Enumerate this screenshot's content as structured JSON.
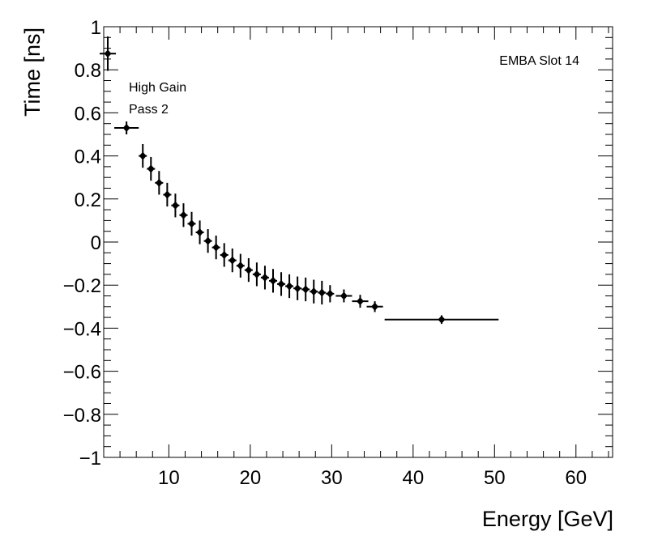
{
  "chart_data": {
    "type": "scatter",
    "xlabel": "Energy [GeV]",
    "ylabel": "Time [ns]",
    "xlim": [
      2,
      64.5
    ],
    "ylim": [
      -1,
      1
    ],
    "x_ticks": [
      "10",
      "20",
      "30",
      "40",
      "50",
      "60"
    ],
    "y_ticks": [
      "1",
      "0.8",
      "0.6",
      "0.4",
      "0.2",
      "0",
      "−0.2",
      "−0.4",
      "−0.6",
      "−0.8",
      "−1"
    ],
    "y_tick_values": [
      1,
      0.8,
      0.6,
      0.4,
      0.2,
      0,
      -0.2,
      -0.4,
      -0.6,
      -0.8,
      -1
    ],
    "grid": false,
    "annotations": {
      "slot_label": "EMBA Slot 14",
      "gain_label": "High Gain",
      "pass_label": "Pass 2"
    },
    "points": [
      {
        "x": 2.5,
        "y": 0.875,
        "xerr": 1.0,
        "yerr": 0.08
      },
      {
        "x": 4.8,
        "y": 0.53,
        "xerr": 1.5,
        "yerr": 0.03
      },
      {
        "x": 6.8,
        "y": 0.4,
        "xerr": 0.5,
        "yerr": 0.055
      },
      {
        "x": 7.8,
        "y": 0.34,
        "xerr": 0.5,
        "yerr": 0.055
      },
      {
        "x": 8.8,
        "y": 0.275,
        "xerr": 0.5,
        "yerr": 0.055
      },
      {
        "x": 9.8,
        "y": 0.22,
        "xerr": 0.5,
        "yerr": 0.055
      },
      {
        "x": 10.8,
        "y": 0.17,
        "xerr": 0.5,
        "yerr": 0.055
      },
      {
        "x": 11.8,
        "y": 0.125,
        "xerr": 0.5,
        "yerr": 0.055
      },
      {
        "x": 12.8,
        "y": 0.085,
        "xerr": 0.5,
        "yerr": 0.055
      },
      {
        "x": 13.8,
        "y": 0.045,
        "xerr": 0.5,
        "yerr": 0.055
      },
      {
        "x": 14.8,
        "y": 0.005,
        "xerr": 0.5,
        "yerr": 0.055
      },
      {
        "x": 15.8,
        "y": -0.025,
        "xerr": 0.5,
        "yerr": 0.055
      },
      {
        "x": 16.8,
        "y": -0.06,
        "xerr": 0.5,
        "yerr": 0.055
      },
      {
        "x": 17.8,
        "y": -0.085,
        "xerr": 0.5,
        "yerr": 0.055
      },
      {
        "x": 18.8,
        "y": -0.11,
        "xerr": 0.5,
        "yerr": 0.055
      },
      {
        "x": 19.8,
        "y": -0.13,
        "xerr": 0.5,
        "yerr": 0.055
      },
      {
        "x": 20.8,
        "y": -0.15,
        "xerr": 0.5,
        "yerr": 0.055
      },
      {
        "x": 21.8,
        "y": -0.165,
        "xerr": 0.5,
        "yerr": 0.055
      },
      {
        "x": 22.8,
        "y": -0.18,
        "xerr": 0.5,
        "yerr": 0.055
      },
      {
        "x": 23.8,
        "y": -0.195,
        "xerr": 0.5,
        "yerr": 0.055
      },
      {
        "x": 24.8,
        "y": -0.205,
        "xerr": 0.5,
        "yerr": 0.055
      },
      {
        "x": 25.8,
        "y": -0.215,
        "xerr": 0.5,
        "yerr": 0.055
      },
      {
        "x": 26.8,
        "y": -0.22,
        "xerr": 0.5,
        "yerr": 0.055
      },
      {
        "x": 27.8,
        "y": -0.23,
        "xerr": 0.5,
        "yerr": 0.055
      },
      {
        "x": 28.8,
        "y": -0.235,
        "xerr": 0.5,
        "yerr": 0.055
      },
      {
        "x": 29.8,
        "y": -0.24,
        "xerr": 0.5,
        "yerr": 0.04
      },
      {
        "x": 31.5,
        "y": -0.25,
        "xerr": 1.0,
        "yerr": 0.03
      },
      {
        "x": 33.5,
        "y": -0.275,
        "xerr": 1.0,
        "yerr": 0.03
      },
      {
        "x": 35.3,
        "y": -0.3,
        "xerr": 1.0,
        "yerr": 0.025
      },
      {
        "x": 43.5,
        "y": -0.36,
        "xerr": 7.0,
        "yerr": 0.02
      }
    ]
  }
}
